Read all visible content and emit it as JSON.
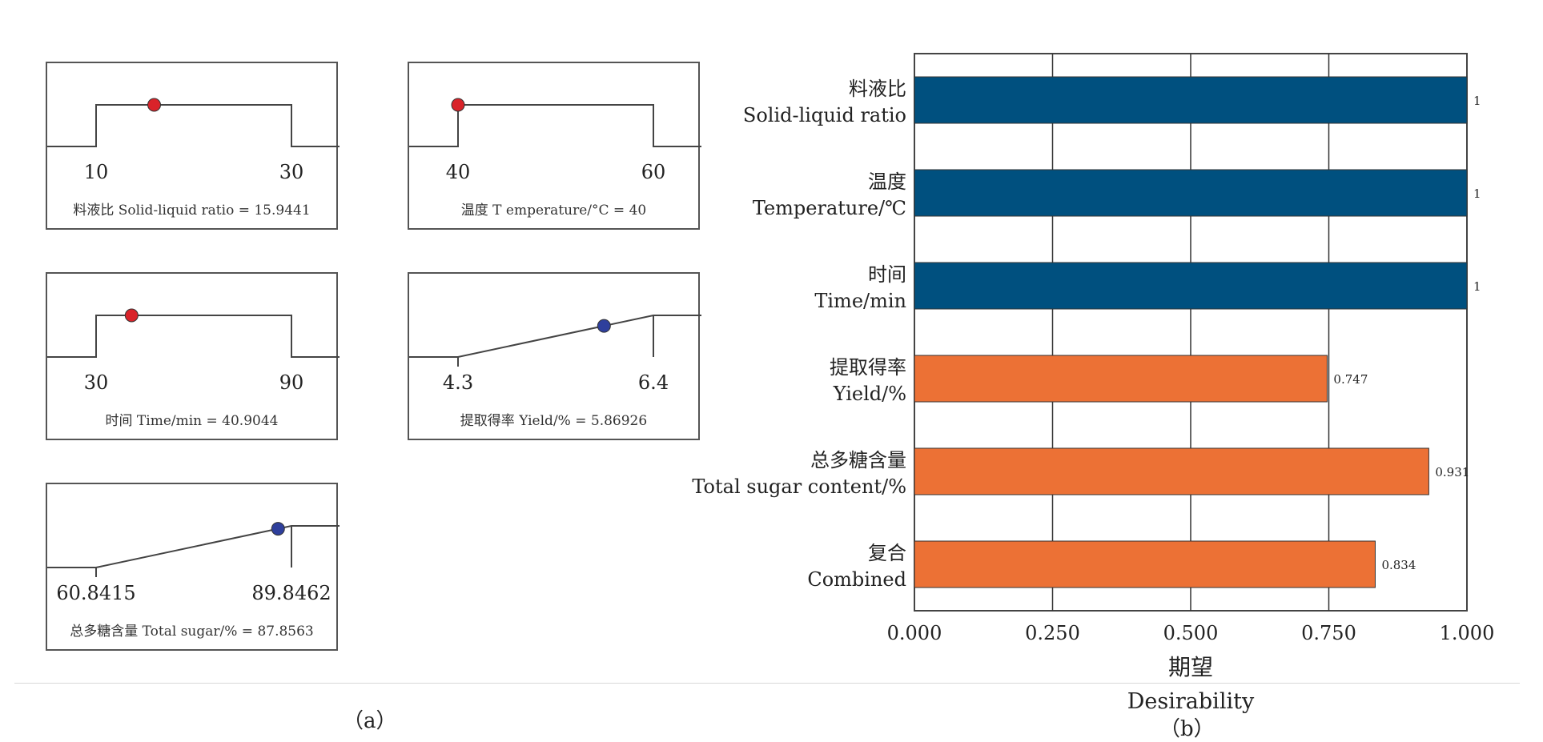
{
  "panel_a": {
    "label": "（a）",
    "ramps": [
      {
        "lo": "10",
        "hi": "30",
        "caption": "料液比 Solid-liquid ratio = 15.9441",
        "shape": "range",
        "value": 15.9441,
        "min": 10,
        "max": 30,
        "marker_color": "#d9232a"
      },
      {
        "lo": "40",
        "hi": "60",
        "caption": "温度 T emperature/°C = 40",
        "shape": "range",
        "value": 40,
        "min": 40,
        "max": 60,
        "marker_color": "#d9232a"
      },
      {
        "lo": "30",
        "hi": "90",
        "caption": "时间 Time/min = 40.9044",
        "shape": "range",
        "value": 40.9044,
        "min": 30,
        "max": 90,
        "marker_color": "#d9232a"
      },
      {
        "lo": "4.3",
        "hi": "6.4",
        "caption": "提取得率 Yield/% = 5.86926",
        "shape": "max",
        "value": 5.86926,
        "min": 4.3,
        "max": 6.4,
        "marker_color": "#2e3f9c"
      },
      {
        "lo": "60.8415",
        "hi": "89.8462",
        "caption": "总多糖含量 Total sugar/% = 87.8563",
        "shape": "max",
        "value": 87.8563,
        "min": 60.8415,
        "max": 89.8462,
        "marker_color": "#2e3f9c"
      }
    ]
  },
  "panel_b": {
    "label": "（b）"
  },
  "chart_data": {
    "type": "bar",
    "orientation": "horizontal",
    "categories": [
      [
        "料液比",
        "Solid-liquid ratio"
      ],
      [
        "温度",
        "Temperature/℃"
      ],
      [
        "时间",
        "Time/min"
      ],
      [
        "提取得率",
        "Yield/%"
      ],
      [
        "总多糖含量",
        "Total sugar content/%"
      ],
      [
        "复合",
        "Combined"
      ]
    ],
    "values": [
      1,
      1,
      1,
      0.747,
      0.931,
      0.834
    ],
    "value_labels": [
      "1",
      "1",
      "1",
      "0.747",
      "0.931",
      "0.834"
    ],
    "bar_colors": [
      "#00507f",
      "#00507f",
      "#00507f",
      "#ec7135",
      "#ec7135",
      "#ec7135"
    ],
    "xlim": [
      0,
      1
    ],
    "xticks": [
      "0.000",
      "0.250",
      "0.500",
      "0.750",
      "1.000"
    ],
    "xlabel": [
      "期望",
      "Desirability"
    ],
    "grid": "vertical"
  }
}
